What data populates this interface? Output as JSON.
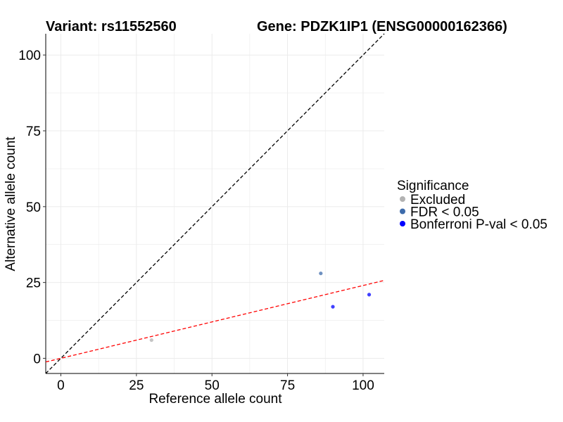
{
  "chart_data": {
    "type": "scatter",
    "title_left": "Variant: rs11552560",
    "title_right": "Gene: PDZK1IP1 (ENSG00000162366)",
    "xlabel": "Reference allele count",
    "ylabel": "Alternative allele count",
    "xlim": [
      -5,
      107
    ],
    "ylim": [
      -5,
      107
    ],
    "xticks": [
      0,
      25,
      50,
      75,
      100
    ],
    "yticks": [
      0,
      25,
      50,
      75,
      100
    ],
    "grid": true,
    "legend": {
      "title": "Significance",
      "placement": "right",
      "entries": [
        {
          "label": "Excluded",
          "color": "#b2b2b2"
        },
        {
          "label": "FDR < 0.05",
          "color": "#3d6bab"
        },
        {
          "label": "Bonferroni P-val < 0.05",
          "color": "#0000ff"
        }
      ]
    },
    "series": [
      {
        "name": "Excluded",
        "color": "#b2b2b2",
        "points": [
          {
            "x": 30,
            "y": 6
          }
        ]
      },
      {
        "name": "FDR < 0.05",
        "color": "#3d6bab",
        "points": [
          {
            "x": 86,
            "y": 28
          }
        ]
      },
      {
        "name": "Bonferroni P-val < 0.05",
        "color": "#0000ff",
        "points": [
          {
            "x": 90,
            "y": 17
          },
          {
            "x": 102,
            "y": 21
          }
        ]
      }
    ],
    "reference_lines": [
      {
        "name": "identity",
        "color": "#000000",
        "dashed": true,
        "intercept": 0,
        "slope": 1
      },
      {
        "name": "fit",
        "color": "#ff0000",
        "dashed": true,
        "intercept": 0,
        "slope": 0.24
      }
    ]
  }
}
